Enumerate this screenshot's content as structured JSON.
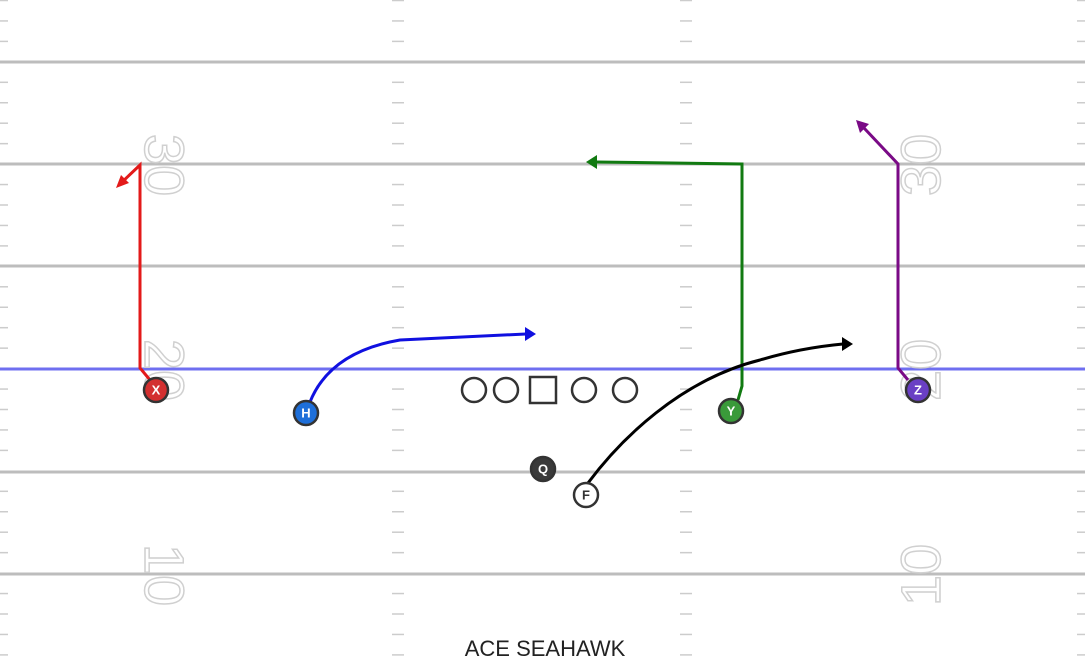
{
  "title": "ACE SEAHAWK",
  "yard_numbers": [
    "30",
    "20",
    "10"
  ],
  "players": [
    {
      "label": "X"
    },
    {
      "label": "H"
    },
    {
      "label": "Y"
    },
    {
      "label": "Z"
    },
    {
      "label": "Q"
    },
    {
      "label": "F"
    }
  ]
}
